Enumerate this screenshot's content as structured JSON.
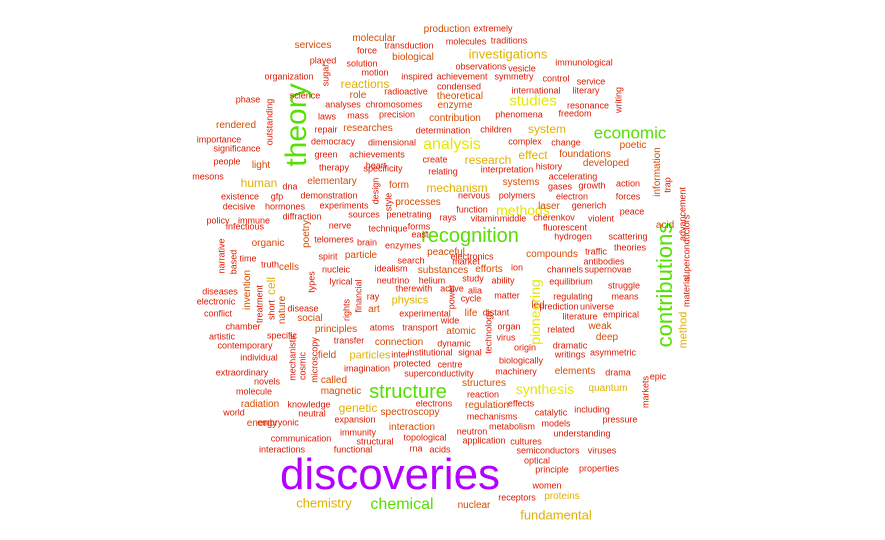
{
  "colors": {
    "xl": "#b300ff",
    "lg": "#55e000",
    "md": "#e6e600",
    "sm": "#e0b000",
    "xs": "#d84a00",
    "xxs": "#e01800"
  },
  "words": [
    {
      "text": "discoveries",
      "size": "xl"
    },
    {
      "text": "theory",
      "size": "lg"
    },
    {
      "text": "recognition",
      "size": "lg"
    },
    {
      "text": "contributions",
      "size": "lg"
    },
    {
      "text": "structure",
      "size": "lg"
    },
    {
      "text": "economic",
      "size": "lg"
    },
    {
      "text": "chemical",
      "size": "lg"
    },
    {
      "text": "analysis",
      "size": "md"
    },
    {
      "text": "studies",
      "size": "md"
    },
    {
      "text": "pioneering",
      "size": "md"
    },
    {
      "text": "synthesis",
      "size": "md"
    },
    {
      "text": "methods",
      "size": "md"
    },
    {
      "text": "investigations",
      "size": "sm"
    },
    {
      "text": "chemistry",
      "size": "sm"
    },
    {
      "text": "fundamental",
      "size": "sm"
    },
    {
      "text": "system",
      "size": "sm"
    },
    {
      "text": "research",
      "size": "sm"
    },
    {
      "text": "effect",
      "size": "sm"
    },
    {
      "text": "mechanism",
      "size": "sm"
    },
    {
      "text": "reactions",
      "size": "sm"
    },
    {
      "text": "human",
      "size": "sm"
    },
    {
      "text": "cell",
      "size": "sm"
    },
    {
      "text": "genetic",
      "size": "sm"
    },
    {
      "text": "method",
      "size": "sm"
    },
    {
      "text": "physics",
      "size": "sm"
    },
    {
      "text": "particles",
      "size": "sm"
    },
    {
      "text": "quantum",
      "size": "sm"
    },
    {
      "text": "proteins",
      "size": "sm"
    },
    {
      "text": "molecular",
      "size": "xs"
    },
    {
      "text": "production",
      "size": "xs"
    },
    {
      "text": "services",
      "size": "xs"
    },
    {
      "text": "biological",
      "size": "xs"
    },
    {
      "text": "theoretical",
      "size": "xs"
    },
    {
      "text": "enzyme",
      "size": "xs"
    },
    {
      "text": "role",
      "size": "xs"
    },
    {
      "text": "contribution",
      "size": "xs"
    },
    {
      "text": "rendered",
      "size": "xs"
    },
    {
      "text": "researches",
      "size": "xs"
    },
    {
      "text": "light",
      "size": "xs"
    },
    {
      "text": "poetic",
      "size": "xs"
    },
    {
      "text": "foundations",
      "size": "xs"
    },
    {
      "text": "developed",
      "size": "xs"
    },
    {
      "text": "information",
      "size": "xs"
    },
    {
      "text": "elementary",
      "size": "xs"
    },
    {
      "text": "systems",
      "size": "xs"
    },
    {
      "text": "processes",
      "size": "xs"
    },
    {
      "text": "laser",
      "size": "xs"
    },
    {
      "text": "organic",
      "size": "xs"
    },
    {
      "text": "cells",
      "size": "xs"
    },
    {
      "text": "particle",
      "size": "xs"
    },
    {
      "text": "peaceful",
      "size": "xs"
    },
    {
      "text": "efforts",
      "size": "xs"
    },
    {
      "text": "compounds",
      "size": "xs"
    },
    {
      "text": "invention",
      "size": "xs"
    },
    {
      "text": "poetry",
      "size": "xs"
    },
    {
      "text": "substances",
      "size": "xs"
    },
    {
      "text": "led",
      "size": "xs"
    },
    {
      "text": "atomic",
      "size": "xs"
    },
    {
      "text": "deep",
      "size": "xs"
    },
    {
      "text": "weak",
      "size": "xs"
    },
    {
      "text": "connection",
      "size": "xs"
    },
    {
      "text": "magnetic",
      "size": "xs"
    },
    {
      "text": "elements",
      "size": "xs"
    },
    {
      "text": "radiation",
      "size": "xs"
    },
    {
      "text": "energy",
      "size": "xs"
    },
    {
      "text": "spectroscopy",
      "size": "xs"
    },
    {
      "text": "interaction",
      "size": "xs"
    },
    {
      "text": "structures",
      "size": "xs"
    },
    {
      "text": "regulation",
      "size": "xs"
    },
    {
      "text": "nuclear",
      "size": "xs"
    },
    {
      "text": "form",
      "size": "xs"
    },
    {
      "text": "life",
      "size": "xs"
    },
    {
      "text": "social",
      "size": "xs"
    },
    {
      "text": "principles",
      "size": "xs"
    },
    {
      "text": "field",
      "size": "xs"
    },
    {
      "text": "called",
      "size": "xs"
    },
    {
      "text": "art",
      "size": "xs"
    },
    {
      "text": "acid",
      "size": "xs"
    },
    {
      "text": "nature",
      "size": "xs"
    },
    {
      "text": "force",
      "size": "xxs"
    },
    {
      "text": "transduction",
      "size": "xxs"
    },
    {
      "text": "molecules",
      "size": "xxs"
    },
    {
      "text": "extremely",
      "size": "xxs"
    },
    {
      "text": "traditions",
      "size": "xxs"
    },
    {
      "text": "played",
      "size": "xxs"
    },
    {
      "text": "solution",
      "size": "xxs"
    },
    {
      "text": "observations",
      "size": "xxs"
    },
    {
      "text": "vesicle",
      "size": "xxs"
    },
    {
      "text": "immunological",
      "size": "xxs"
    },
    {
      "text": "organization",
      "size": "xxs"
    },
    {
      "text": "sugar",
      "size": "xxs"
    },
    {
      "text": "motion",
      "size": "xxs"
    },
    {
      "text": "inspired",
      "size": "xxs"
    },
    {
      "text": "achievement",
      "size": "xxs"
    },
    {
      "text": "symmetry",
      "size": "xxs"
    },
    {
      "text": "control",
      "size": "xxs"
    },
    {
      "text": "service",
      "size": "xxs"
    },
    {
      "text": "radioactive",
      "size": "xxs"
    },
    {
      "text": "condensed",
      "size": "xxs"
    },
    {
      "text": "international",
      "size": "xxs"
    },
    {
      "text": "literary",
      "size": "xxs"
    },
    {
      "text": "science",
      "size": "xxs"
    },
    {
      "text": "writing",
      "size": "xxs"
    },
    {
      "text": "phase",
      "size": "xxs"
    },
    {
      "text": "analyses",
      "size": "xxs"
    },
    {
      "text": "chromosomes",
      "size": "xxs"
    },
    {
      "text": "resonance",
      "size": "xxs"
    },
    {
      "text": "laws",
      "size": "xxs"
    },
    {
      "text": "mass",
      "size": "xxs"
    },
    {
      "text": "precision",
      "size": "xxs"
    },
    {
      "text": "phenomena",
      "size": "xxs"
    },
    {
      "text": "freedom",
      "size": "xxs"
    },
    {
      "text": "outstanding",
      "size": "xxs"
    },
    {
      "text": "repair",
      "size": "xxs"
    },
    {
      "text": "determination",
      "size": "xxs"
    },
    {
      "text": "children",
      "size": "xxs"
    },
    {
      "text": "importance",
      "size": "xxs"
    },
    {
      "text": "democracy",
      "size": "xxs"
    },
    {
      "text": "dimensional",
      "size": "xxs"
    },
    {
      "text": "complex",
      "size": "xxs"
    },
    {
      "text": "change",
      "size": "xxs"
    },
    {
      "text": "significance",
      "size": "xxs"
    },
    {
      "text": "green",
      "size": "xxs"
    },
    {
      "text": "achievements",
      "size": "xxs"
    },
    {
      "text": "create",
      "size": "xxs"
    },
    {
      "text": "people",
      "size": "xxs"
    },
    {
      "text": "therapy",
      "size": "xxs"
    },
    {
      "text": "specificity",
      "size": "xxs"
    },
    {
      "text": "relating",
      "size": "xxs"
    },
    {
      "text": "interpretation",
      "size": "xxs"
    },
    {
      "text": "history",
      "size": "xxs"
    },
    {
      "text": "mesons",
      "size": "xxs"
    },
    {
      "text": "accelerating",
      "size": "xxs"
    },
    {
      "text": "dna",
      "size": "xxs"
    },
    {
      "text": "gases",
      "size": "xxs"
    },
    {
      "text": "growth",
      "size": "xxs"
    },
    {
      "text": "action",
      "size": "xxs"
    },
    {
      "text": "trap",
      "size": "xxs"
    },
    {
      "text": "existence",
      "size": "xxs"
    },
    {
      "text": "gfp",
      "size": "xxs"
    },
    {
      "text": "demonstration",
      "size": "xxs"
    },
    {
      "text": "nervous",
      "size": "xxs"
    },
    {
      "text": "polymers",
      "size": "xxs"
    },
    {
      "text": "electron",
      "size": "xxs"
    },
    {
      "text": "forces",
      "size": "xxs"
    },
    {
      "text": "decisive",
      "size": "xxs"
    },
    {
      "text": "hormones",
      "size": "xxs"
    },
    {
      "text": "experiments",
      "size": "xxs"
    },
    {
      "text": "function",
      "size": "xxs"
    },
    {
      "text": "generich",
      "size": "xxs"
    },
    {
      "text": "peace",
      "size": "xxs"
    },
    {
      "text": "policy",
      "size": "xxs"
    },
    {
      "text": "immune",
      "size": "xxs"
    },
    {
      "text": "diffraction",
      "size": "xxs"
    },
    {
      "text": "sources",
      "size": "xxs"
    },
    {
      "text": "penetrating",
      "size": "xxs"
    },
    {
      "text": "rays",
      "size": "xxs"
    },
    {
      "text": "vitamin",
      "size": "xxs"
    },
    {
      "text": "middle",
      "size": "xxs"
    },
    {
      "text": "cherenkov",
      "size": "xxs"
    },
    {
      "text": "violent",
      "size": "xxs"
    },
    {
      "text": "infectious",
      "size": "xxs"
    },
    {
      "text": "nerve",
      "size": "xxs"
    },
    {
      "text": "technique",
      "size": "xxs"
    },
    {
      "text": "forms",
      "size": "xxs"
    },
    {
      "text": "fluorescent",
      "size": "xxs"
    },
    {
      "text": "advancement",
      "size": "xxs"
    },
    {
      "text": "telomeres",
      "size": "xxs"
    },
    {
      "text": "brain",
      "size": "xxs"
    },
    {
      "text": "enzymes",
      "size": "xxs"
    },
    {
      "text": "east",
      "size": "xxs"
    },
    {
      "text": "hydrogen",
      "size": "xxs"
    },
    {
      "text": "scattering",
      "size": "xxs"
    },
    {
      "text": "superconductors",
      "size": "xxs"
    },
    {
      "text": "theories",
      "size": "xxs"
    },
    {
      "text": "electronics",
      "size": "xxs"
    },
    {
      "text": "traffic",
      "size": "xxs"
    },
    {
      "text": "time",
      "size": "xxs"
    },
    {
      "text": "spirit",
      "size": "xxs"
    },
    {
      "text": "truth",
      "size": "xxs"
    },
    {
      "text": "search",
      "size": "xxs"
    },
    {
      "text": "market",
      "size": "xxs"
    },
    {
      "text": "nucleic",
      "size": "xxs"
    },
    {
      "text": "idealism",
      "size": "xxs"
    },
    {
      "text": "ion",
      "size": "xxs"
    },
    {
      "text": "channels",
      "size": "xxs"
    },
    {
      "text": "supernovae",
      "size": "xxs"
    },
    {
      "text": "antibodies",
      "size": "xxs"
    },
    {
      "text": "lyrical",
      "size": "xxs"
    },
    {
      "text": "neutrino",
      "size": "xxs"
    },
    {
      "text": "helium",
      "size": "xxs"
    },
    {
      "text": "study",
      "size": "xxs"
    },
    {
      "text": "ability",
      "size": "xxs"
    },
    {
      "text": "equilibrium",
      "size": "xxs"
    },
    {
      "text": "struggle",
      "size": "xxs"
    },
    {
      "text": "material",
      "size": "xxs"
    },
    {
      "text": "diseases",
      "size": "xxs"
    },
    {
      "text": "types",
      "size": "xxs"
    },
    {
      "text": "therewith",
      "size": "xxs"
    },
    {
      "text": "active",
      "size": "xxs"
    },
    {
      "text": "alia",
      "size": "xxs"
    },
    {
      "text": "electronic",
      "size": "xxs"
    },
    {
      "text": "financial",
      "size": "xxs"
    },
    {
      "text": "ray",
      "size": "xxs"
    },
    {
      "text": "matter",
      "size": "xxs"
    },
    {
      "text": "regulating",
      "size": "xxs"
    },
    {
      "text": "means",
      "size": "xxs"
    },
    {
      "text": "treatment",
      "size": "xxs"
    },
    {
      "text": "cycle",
      "size": "xxs"
    },
    {
      "text": "universe",
      "size": "xxs"
    },
    {
      "text": "conflict",
      "size": "xxs"
    },
    {
      "text": "short",
      "size": "xxs"
    },
    {
      "text": "disease",
      "size": "xxs"
    },
    {
      "text": "experimental",
      "size": "xxs"
    },
    {
      "text": "distant",
      "size": "xxs"
    },
    {
      "text": "prediction",
      "size": "xxs"
    },
    {
      "text": "empirical",
      "size": "xxs"
    },
    {
      "text": "literature",
      "size": "xxs"
    },
    {
      "text": "chamber",
      "size": "xxs"
    },
    {
      "text": "wide",
      "size": "xxs"
    },
    {
      "text": "organ",
      "size": "xxs"
    },
    {
      "text": "related",
      "size": "xxs"
    },
    {
      "text": "artistic",
      "size": "xxs"
    },
    {
      "text": "specific",
      "size": "xxs"
    },
    {
      "text": "transport",
      "size": "xxs"
    },
    {
      "text": "atoms",
      "size": "xxs"
    },
    {
      "text": "virus",
      "size": "xxs"
    },
    {
      "text": "contemporary",
      "size": "xxs"
    },
    {
      "text": "transfer",
      "size": "xxs"
    },
    {
      "text": "dynamic",
      "size": "xxs"
    },
    {
      "text": "origin",
      "size": "xxs"
    },
    {
      "text": "dramatic",
      "size": "xxs"
    },
    {
      "text": "asymmetric",
      "size": "xxs"
    },
    {
      "text": "individual",
      "size": "xxs"
    },
    {
      "text": "mechanistic",
      "size": "xxs"
    },
    {
      "text": "inter",
      "size": "xxs"
    },
    {
      "text": "institutional",
      "size": "xxs"
    },
    {
      "text": "signal",
      "size": "xxs"
    },
    {
      "text": "biologically",
      "size": "xxs"
    },
    {
      "text": "writings",
      "size": "xxs"
    },
    {
      "text": "extraordinary",
      "size": "xxs"
    },
    {
      "text": "cosmic",
      "size": "xxs"
    },
    {
      "text": "microscopy",
      "size": "xxs"
    },
    {
      "text": "imagination",
      "size": "xxs"
    },
    {
      "text": "protected",
      "size": "xxs"
    },
    {
      "text": "centre",
      "size": "xxs"
    },
    {
      "text": "machinery",
      "size": "xxs"
    },
    {
      "text": "drama",
      "size": "xxs"
    },
    {
      "text": "epic",
      "size": "xxs"
    },
    {
      "text": "novels",
      "size": "xxs"
    },
    {
      "text": "superconductivity",
      "size": "xxs"
    },
    {
      "text": "molecule",
      "size": "xxs"
    },
    {
      "text": "reaction",
      "size": "xxs"
    },
    {
      "text": "markets",
      "size": "xxs"
    },
    {
      "text": "knowledge",
      "size": "xxs"
    },
    {
      "text": "electrons",
      "size": "xxs"
    },
    {
      "text": "effects",
      "size": "xxs"
    },
    {
      "text": "world",
      "size": "xxs"
    },
    {
      "text": "neutral",
      "size": "xxs"
    },
    {
      "text": "mechanisms",
      "size": "xxs"
    },
    {
      "text": "catalytic",
      "size": "xxs"
    },
    {
      "text": "including",
      "size": "xxs"
    },
    {
      "text": "embryonic",
      "size": "xxs"
    },
    {
      "text": "expansion",
      "size": "xxs"
    },
    {
      "text": "metabolism",
      "size": "xxs"
    },
    {
      "text": "models",
      "size": "xxs"
    },
    {
      "text": "pressure",
      "size": "xxs"
    },
    {
      "text": "immunity",
      "size": "xxs"
    },
    {
      "text": "neutron",
      "size": "xxs"
    },
    {
      "text": "understanding",
      "size": "xxs"
    },
    {
      "text": "communication",
      "size": "xxs"
    },
    {
      "text": "structural",
      "size": "xxs"
    },
    {
      "text": "topological",
      "size": "xxs"
    },
    {
      "text": "application",
      "size": "xxs"
    },
    {
      "text": "cultures",
      "size": "xxs"
    },
    {
      "text": "interactions",
      "size": "xxs"
    },
    {
      "text": "functional",
      "size": "xxs"
    },
    {
      "text": "rna",
      "size": "xxs"
    },
    {
      "text": "acids",
      "size": "xxs"
    },
    {
      "text": "semiconductors",
      "size": "xxs"
    },
    {
      "text": "viruses",
      "size": "xxs"
    },
    {
      "text": "optical",
      "size": "xxs"
    },
    {
      "text": "principle",
      "size": "xxs"
    },
    {
      "text": "properties",
      "size": "xxs"
    },
    {
      "text": "women",
      "size": "xxs"
    },
    {
      "text": "receptors",
      "size": "xxs"
    },
    {
      "text": "heart",
      "size": "xxs"
    },
    {
      "text": "design",
      "size": "xxs"
    },
    {
      "text": "style",
      "size": "xxs"
    },
    {
      "text": "rights",
      "size": "xxs"
    },
    {
      "text": "power",
      "size": "xxs"
    },
    {
      "text": "technology",
      "size": "xxs"
    },
    {
      "text": "based",
      "size": "xxs"
    },
    {
      "text": "narrative",
      "size": "xxs"
    }
  ]
}
